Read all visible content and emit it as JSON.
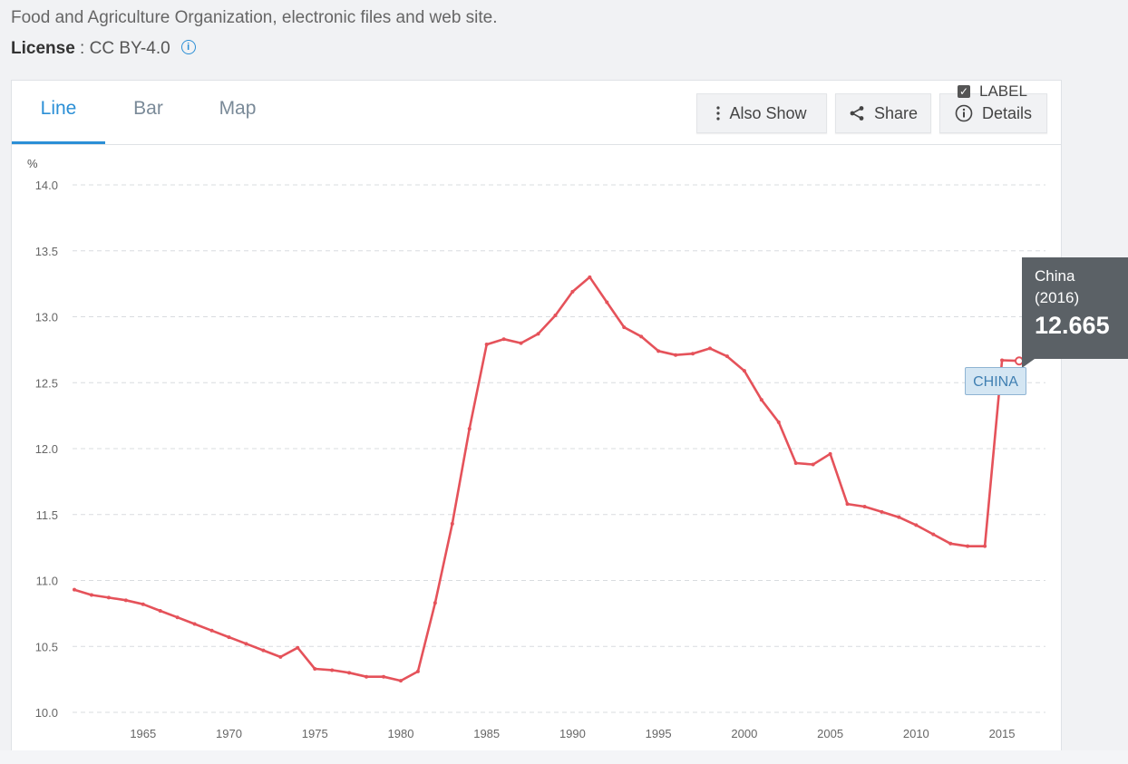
{
  "source": {
    "text": "Food and Agriculture Organization, electronic files and web site."
  },
  "license": {
    "label": "License",
    "separator": " : ",
    "value": "CC BY-4.0",
    "info_icon": "info-icon"
  },
  "tabs": [
    {
      "label": "Line",
      "active": true
    },
    {
      "label": "Bar",
      "active": false
    },
    {
      "label": "Map",
      "active": false
    }
  ],
  "toolbar": {
    "also_show": {
      "label": "Also Show",
      "icon": "more-vertical-icon"
    },
    "share": {
      "label": "Share",
      "icon": "share-icon"
    },
    "details": {
      "label": "Details",
      "icon": "info-circle-icon"
    }
  },
  "label_toggle": {
    "label": "LABEL",
    "checked": true
  },
  "tooltip": {
    "name": "China",
    "year": "(2016)",
    "value": "12.665"
  },
  "series_tag": "CHINA",
  "background_fragments": [
    "Fo",
    "Ar"
  ],
  "colors": {
    "line": "#e5525a",
    "accent": "#2b8fd6",
    "tooltip_bg": "#5b6166"
  },
  "chart_data": {
    "type": "line",
    "title": "",
    "xlabel": "",
    "ylabel": "%",
    "ylim": [
      10.0,
      14.0
    ],
    "xlim": [
      1961,
      2016
    ],
    "yticks": [
      "10.0",
      "10.5",
      "11.0",
      "11.5",
      "12.0",
      "12.5",
      "13.0",
      "13.5",
      "14.0"
    ],
    "xticks": [
      "1965",
      "1970",
      "1975",
      "1980",
      "1985",
      "1990",
      "1995",
      "2000",
      "2005",
      "2010",
      "2015"
    ],
    "grid": true,
    "series": [
      {
        "name": "CHINA",
        "x": [
          1961,
          1962,
          1963,
          1964,
          1965,
          1966,
          1967,
          1968,
          1969,
          1970,
          1971,
          1972,
          1973,
          1974,
          1975,
          1976,
          1977,
          1978,
          1979,
          1980,
          1981,
          1982,
          1983,
          1984,
          1985,
          1986,
          1987,
          1988,
          1989,
          1990,
          1991,
          1992,
          1993,
          1994,
          1995,
          1996,
          1997,
          1998,
          1999,
          2000,
          2001,
          2002,
          2003,
          2004,
          2005,
          2006,
          2007,
          2008,
          2009,
          2010,
          2011,
          2012,
          2013,
          2014,
          2015,
          2016
        ],
        "values": [
          10.93,
          10.89,
          10.87,
          10.85,
          10.82,
          10.77,
          10.72,
          10.67,
          10.62,
          10.57,
          10.52,
          10.47,
          10.42,
          10.49,
          10.33,
          10.32,
          10.3,
          10.27,
          10.27,
          10.24,
          10.31,
          10.83,
          11.43,
          12.15,
          12.79,
          12.83,
          12.8,
          12.87,
          13.01,
          13.19,
          13.3,
          13.11,
          12.92,
          12.85,
          12.74,
          12.71,
          12.72,
          12.76,
          12.7,
          12.59,
          12.37,
          12.2,
          11.89,
          11.88,
          11.96,
          11.58,
          11.56,
          11.52,
          11.48,
          11.42,
          11.35,
          11.28,
          11.26,
          11.26,
          12.67,
          12.665
        ]
      }
    ]
  }
}
